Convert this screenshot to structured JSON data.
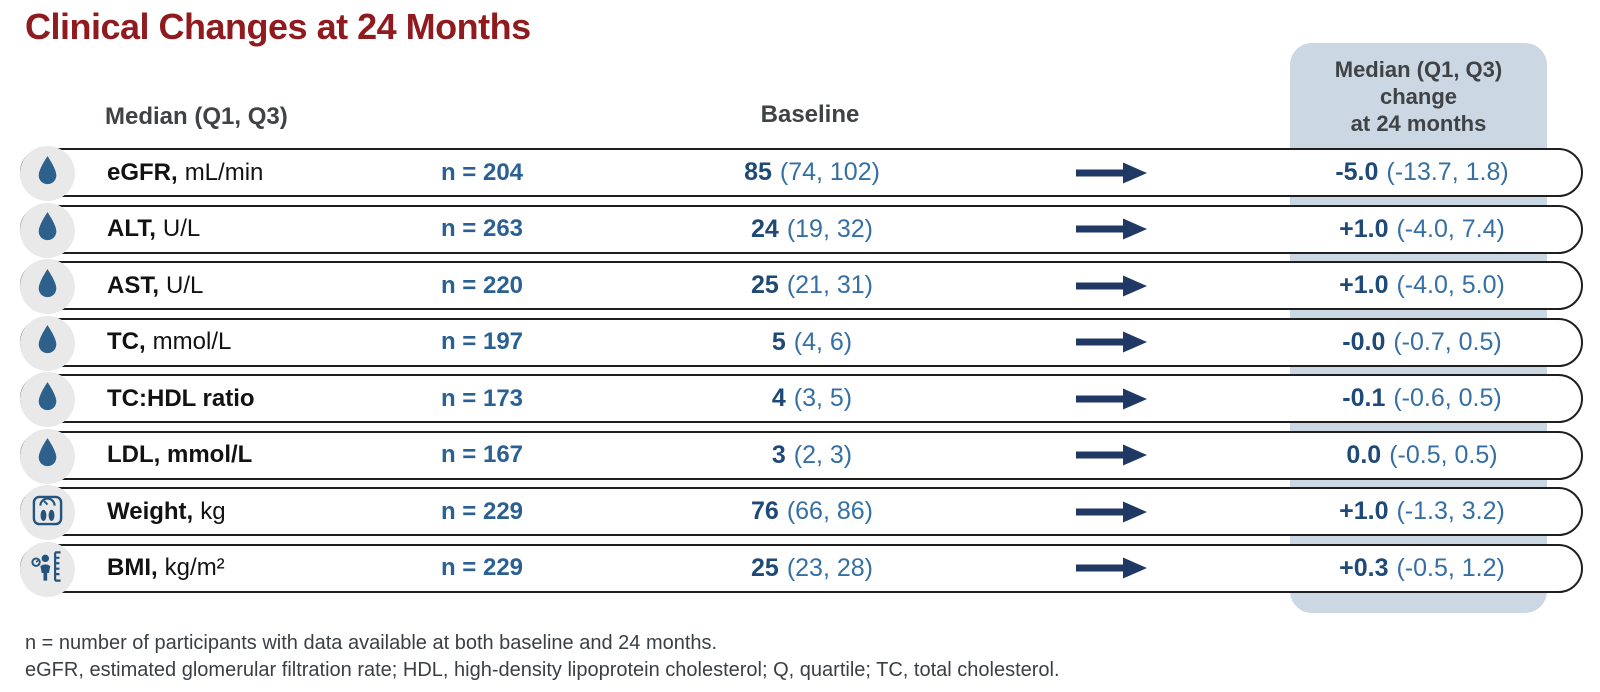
{
  "title": "Clinical Changes at 24 Months",
  "headers": {
    "median_label": "Median (Q1, Q3)",
    "baseline_label": "Baseline",
    "change_line1": "Median (Q1, Q3)",
    "change_line2": "change",
    "change_line3": "at 24 months"
  },
  "rows": [
    {
      "icon": "droplet-icon",
      "label_bold": "eGFR,",
      "label_rest": "mL/min",
      "n": "n = 204",
      "baseline_value": "85",
      "baseline_range": "(74, 102)",
      "change_value": "-5.0",
      "change_range": "(-13.7, 1.8)"
    },
    {
      "icon": "droplet-icon",
      "label_bold": "ALT,",
      "label_rest": "U/L",
      "n": "n = 263",
      "baseline_value": "24",
      "baseline_range": "(19, 32)",
      "change_value": "+1.0",
      "change_range": "(-4.0, 7.4)"
    },
    {
      "icon": "droplet-icon",
      "label_bold": "AST,",
      "label_rest": "U/L",
      "n": "n = 220",
      "baseline_value": "25",
      "baseline_range": "(21, 31)",
      "change_value": "+1.0",
      "change_range": "(-4.0, 5.0)"
    },
    {
      "icon": "droplet-icon",
      "label_bold": "TC,",
      "label_rest": "mmol/L",
      "n": "n = 197",
      "baseline_value": "5",
      "baseline_range": "(4, 6)",
      "change_value": "-0.0",
      "change_range": "(-0.7, 0.5)"
    },
    {
      "icon": "droplet-icon",
      "label_bold": "TC:HDL ratio",
      "label_rest": "",
      "n": "n = 173",
      "baseline_value": "4",
      "baseline_range": "(3, 5)",
      "change_value": "-0.1",
      "change_range": "(-0.6, 0.5)"
    },
    {
      "icon": "droplet-icon",
      "label_bold": "LDL, mmol/L",
      "label_rest": "",
      "n": "n = 167",
      "baseline_value": "3",
      "baseline_range": "(2, 3)",
      "change_value": "0.0",
      "change_range": "(-0.5, 0.5)"
    },
    {
      "icon": "scale-icon",
      "label_bold": "Weight,",
      "label_rest": "kg",
      "n": "n = 229",
      "baseline_value": "76",
      "baseline_range": "(66, 86)",
      "change_value": "+1.0",
      "change_range": "(-1.3, 3.2)"
    },
    {
      "icon": "bmi-icon",
      "label_bold": "BMI,",
      "label_rest": "kg/m²",
      "n": "n = 229",
      "baseline_value": "25",
      "baseline_range": "(23, 28)",
      "change_value": "+0.3",
      "change_range": "(-0.5, 1.2)"
    }
  ],
  "footnotes": [
    "n = number of participants with data available at both baseline and 24 months.",
    "eGFR, estimated glomerular filtration rate; HDL, high-density lipoprotein cholesterol; Q, quartile; TC, total cholesterol."
  ],
  "colors": {
    "title_red": "#8F1B1F",
    "header_text": "#3F4345",
    "band_blue": "#CBD7E3",
    "value_bold_navy": "#1F4977",
    "value_range_blue": "#356FA3",
    "n_text_blue": "#2A6093",
    "arrow_navy": "#1F3864",
    "icon_blue": "#2E608C",
    "pill_border": "#1F1F1F"
  },
  "chart_data": {
    "type": "table",
    "title": "Clinical Changes at 24 Months",
    "columns": [
      "Parameter (Median (Q1, Q3))",
      "n",
      "Baseline",
      "Median (Q1, Q3) change at 24 months"
    ],
    "rows": [
      [
        "eGFR, mL/min",
        204,
        "85 (74, 102)",
        "-5.0 (-13.7, 1.8)"
      ],
      [
        "ALT, U/L",
        263,
        "24 (19, 32)",
        "+1.0 (-4.0, 7.4)"
      ],
      [
        "AST, U/L",
        220,
        "25 (21, 31)",
        "+1.0 (-4.0, 5.0)"
      ],
      [
        "TC, mmol/L",
        197,
        "5 (4, 6)",
        "-0.0 (-0.7, 0.5)"
      ],
      [
        "TC:HDL ratio",
        173,
        "4 (3, 5)",
        "-0.1 (-0.6, 0.5)"
      ],
      [
        "LDL, mmol/L",
        167,
        "3 (2, 3)",
        "0.0 (-0.5, 0.5)"
      ],
      [
        "Weight, kg",
        229,
        "76 (66, 86)",
        "+1.0 (-1.3, 3.2)"
      ],
      [
        "BMI, kg/m²",
        229,
        "25 (23, 28)",
        "+0.3 (-0.5, 1.2)"
      ]
    ]
  }
}
